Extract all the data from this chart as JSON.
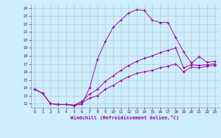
{
  "xlabel": "Windchill (Refroidissement éolien,°C)",
  "bg_color": "#cceeff",
  "line_color": "#990099",
  "grid_color": "#bbbbbb",
  "xlim": [
    -0.5,
    23.5
  ],
  "ylim": [
    11.5,
    24.5
  ],
  "yticks": [
    12,
    13,
    14,
    15,
    16,
    17,
    18,
    19,
    20,
    21,
    22,
    23,
    24
  ],
  "xticks": [
    0,
    1,
    2,
    3,
    4,
    5,
    6,
    7,
    8,
    9,
    10,
    11,
    12,
    13,
    14,
    15,
    16,
    17,
    18,
    19,
    20,
    21,
    22,
    23
  ],
  "series": [
    {
      "x": [
        0,
        1,
        2,
        3,
        4,
        5,
        6,
        7,
        8,
        9,
        10,
        11,
        12,
        13,
        14,
        15,
        16,
        17,
        18,
        19,
        20,
        21,
        22,
        23
      ],
      "y": [
        13.8,
        13.3,
        12.0,
        11.9,
        11.9,
        11.8,
        11.9,
        14.0,
        17.6,
        19.8,
        21.6,
        22.5,
        23.4,
        23.8,
        23.7,
        22.5,
        22.2,
        22.2,
        20.3,
        18.5,
        17.1,
        17.9,
        17.2,
        17.3
      ]
    },
    {
      "x": [
        0,
        1,
        2,
        3,
        4,
        5,
        6,
        7,
        8,
        9,
        10,
        11,
        12,
        13,
        14,
        15,
        16,
        17,
        18,
        19,
        20,
        21,
        22,
        23
      ],
      "y": [
        13.8,
        13.3,
        12.0,
        11.9,
        11.9,
        11.8,
        12.3,
        13.2,
        13.8,
        14.8,
        15.5,
        16.2,
        16.8,
        17.3,
        17.7,
        18.0,
        18.4,
        18.7,
        19.0,
        16.5,
        16.9,
        16.8,
        16.9,
        17.0
      ]
    },
    {
      "x": [
        0,
        1,
        2,
        3,
        4,
        5,
        6,
        7,
        8,
        9,
        10,
        11,
        12,
        13,
        14,
        15,
        16,
        17,
        18,
        19,
        20,
        21,
        22,
        23
      ],
      "y": [
        13.8,
        13.3,
        12.0,
        11.9,
        11.9,
        11.8,
        12.1,
        12.7,
        13.0,
        13.8,
        14.3,
        14.9,
        15.4,
        15.8,
        16.0,
        16.2,
        16.5,
        16.7,
        17.0,
        16.0,
        16.6,
        16.5,
        16.7,
        16.8
      ]
    }
  ]
}
